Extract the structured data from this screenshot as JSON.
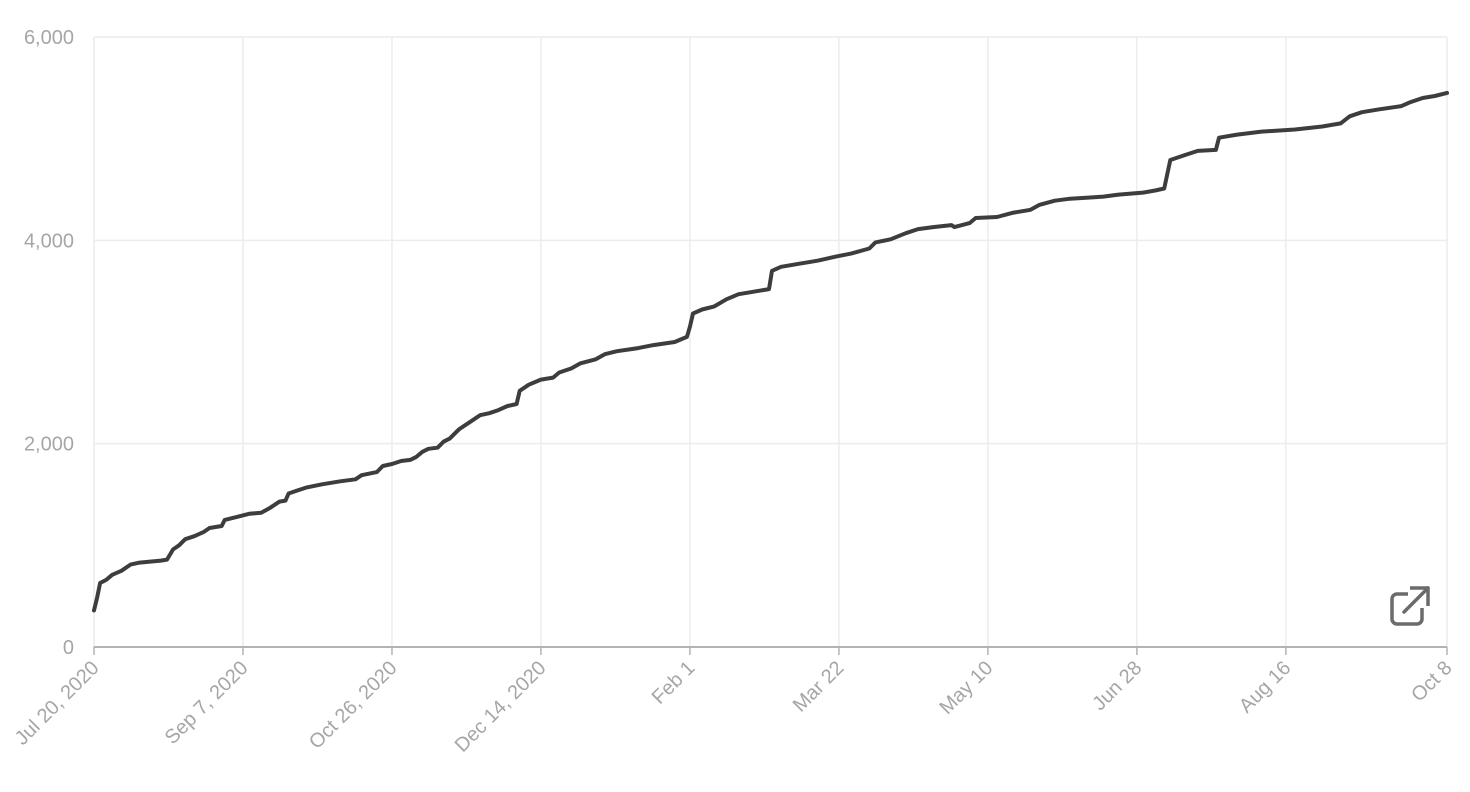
{
  "chart_data": {
    "type": "line",
    "title": "",
    "xlabel": "",
    "ylabel": "",
    "x_axis": {
      "type": "date",
      "range": [
        "2020-07-20",
        "2021-10-08"
      ],
      "ticks": [
        {
          "date": "2020-07-20",
          "label": "Jul 20, 2020"
        },
        {
          "date": "2020-09-07",
          "label": "Sep 7, 2020"
        },
        {
          "date": "2020-10-26",
          "label": "Oct 26, 2020"
        },
        {
          "date": "2020-12-14",
          "label": "Dec 14, 2020"
        },
        {
          "date": "2021-02-01",
          "label": "Feb 1"
        },
        {
          "date": "2021-03-22",
          "label": "Mar 22"
        },
        {
          "date": "2021-05-10",
          "label": "May 10"
        },
        {
          "date": "2021-06-28",
          "label": "Jun 28"
        },
        {
          "date": "2021-08-16",
          "label": "Aug 16"
        },
        {
          "date": "2021-10-08",
          "label": "Oct 8"
        }
      ]
    },
    "y_axis": {
      "range": [
        0,
        6000
      ],
      "ticks": [
        {
          "value": 0,
          "label": "0"
        },
        {
          "value": 2000,
          "label": "2,000"
        },
        {
          "value": 4000,
          "label": "4,000"
        },
        {
          "value": 6000,
          "label": "6,000"
        }
      ]
    },
    "grid": true,
    "legend": "none",
    "series": [
      {
        "color": "#3d3d3d",
        "points": [
          [
            "2020-07-20",
            360
          ],
          [
            "2020-07-21",
            480
          ],
          [
            "2020-07-22",
            630
          ],
          [
            "2020-07-24",
            660
          ],
          [
            "2020-07-26",
            710
          ],
          [
            "2020-07-29",
            750
          ],
          [
            "2020-08-01",
            810
          ],
          [
            "2020-08-04",
            830
          ],
          [
            "2020-08-11",
            850
          ],
          [
            "2020-08-13",
            860
          ],
          [
            "2020-08-15",
            960
          ],
          [
            "2020-08-17",
            1000
          ],
          [
            "2020-08-19",
            1060
          ],
          [
            "2020-08-22",
            1090
          ],
          [
            "2020-08-25",
            1130
          ],
          [
            "2020-08-27",
            1170
          ],
          [
            "2020-08-31",
            1190
          ],
          [
            "2020-09-01",
            1250
          ],
          [
            "2020-09-05",
            1280
          ],
          [
            "2020-09-09",
            1310
          ],
          [
            "2020-09-13",
            1320
          ],
          [
            "2020-09-16",
            1370
          ],
          [
            "2020-09-19",
            1430
          ],
          [
            "2020-09-21",
            1440
          ],
          [
            "2020-09-22",
            1510
          ],
          [
            "2020-09-25",
            1540
          ],
          [
            "2020-09-28",
            1570
          ],
          [
            "2020-10-03",
            1600
          ],
          [
            "2020-10-09",
            1630
          ],
          [
            "2020-10-14",
            1650
          ],
          [
            "2020-10-16",
            1690
          ],
          [
            "2020-10-21",
            1720
          ],
          [
            "2020-10-23",
            1780
          ],
          [
            "2020-10-26",
            1800
          ],
          [
            "2020-10-29",
            1830
          ],
          [
            "2020-11-01",
            1840
          ],
          [
            "2020-11-03",
            1870
          ],
          [
            "2020-11-05",
            1920
          ],
          [
            "2020-11-07",
            1950
          ],
          [
            "2020-11-10",
            1960
          ],
          [
            "2020-11-12",
            2020
          ],
          [
            "2020-11-14",
            2050
          ],
          [
            "2020-11-17",
            2140
          ],
          [
            "2020-11-21",
            2220
          ],
          [
            "2020-11-24",
            2280
          ],
          [
            "2020-11-27",
            2300
          ],
          [
            "2020-11-30",
            2330
          ],
          [
            "2020-12-03",
            2370
          ],
          [
            "2020-12-06",
            2390
          ],
          [
            "2020-12-07",
            2520
          ],
          [
            "2020-12-10",
            2580
          ],
          [
            "2020-12-14",
            2630
          ],
          [
            "2020-12-18",
            2650
          ],
          [
            "2020-12-20",
            2700
          ],
          [
            "2020-12-24",
            2740
          ],
          [
            "2020-12-27",
            2790
          ],
          [
            "2021-01-01",
            2830
          ],
          [
            "2021-01-04",
            2880
          ],
          [
            "2021-01-08",
            2910
          ],
          [
            "2021-01-15",
            2940
          ],
          [
            "2021-01-20",
            2970
          ],
          [
            "2021-01-27",
            3000
          ],
          [
            "2021-01-31",
            3050
          ],
          [
            "2021-02-01",
            3150
          ],
          [
            "2021-02-02",
            3280
          ],
          [
            "2021-02-05",
            3320
          ],
          [
            "2021-02-09",
            3350
          ],
          [
            "2021-02-13",
            3420
          ],
          [
            "2021-02-17",
            3470
          ],
          [
            "2021-02-21",
            3490
          ],
          [
            "2021-02-27",
            3520
          ],
          [
            "2021-02-28",
            3700
          ],
          [
            "2021-03-03",
            3740
          ],
          [
            "2021-03-09",
            3770
          ],
          [
            "2021-03-15",
            3800
          ],
          [
            "2021-03-21",
            3840
          ],
          [
            "2021-03-26",
            3870
          ],
          [
            "2021-04-01",
            3920
          ],
          [
            "2021-04-03",
            3980
          ],
          [
            "2021-04-08",
            4010
          ],
          [
            "2021-04-13",
            4070
          ],
          [
            "2021-04-17",
            4110
          ],
          [
            "2021-04-22",
            4130
          ],
          [
            "2021-04-28",
            4150
          ],
          [
            "2021-04-29",
            4130
          ],
          [
            "2021-05-04",
            4170
          ],
          [
            "2021-05-06",
            4220
          ],
          [
            "2021-05-13",
            4230
          ],
          [
            "2021-05-18",
            4270
          ],
          [
            "2021-05-24",
            4300
          ],
          [
            "2021-05-27",
            4350
          ],
          [
            "2021-06-01",
            4390
          ],
          [
            "2021-06-06",
            4410
          ],
          [
            "2021-06-12",
            4420
          ],
          [
            "2021-06-17",
            4430
          ],
          [
            "2021-06-22",
            4450
          ],
          [
            "2021-06-30",
            4470
          ],
          [
            "2021-07-04",
            4490
          ],
          [
            "2021-07-07",
            4510
          ],
          [
            "2021-07-09",
            4790
          ],
          [
            "2021-07-14",
            4840
          ],
          [
            "2021-07-18",
            4880
          ],
          [
            "2021-07-24",
            4890
          ],
          [
            "2021-07-25",
            5010
          ],
          [
            "2021-07-31",
            5040
          ],
          [
            "2021-08-08",
            5070
          ],
          [
            "2021-08-19",
            5090
          ],
          [
            "2021-08-28",
            5120
          ],
          [
            "2021-09-03",
            5150
          ],
          [
            "2021-09-06",
            5220
          ],
          [
            "2021-09-10",
            5260
          ],
          [
            "2021-09-16",
            5290
          ],
          [
            "2021-09-23",
            5320
          ],
          [
            "2021-09-26",
            5360
          ],
          [
            "2021-09-30",
            5400
          ],
          [
            "2021-10-04",
            5420
          ],
          [
            "2021-10-08",
            5450
          ]
        ]
      }
    ]
  },
  "controls": {
    "expand_icon": "external-link-icon"
  }
}
